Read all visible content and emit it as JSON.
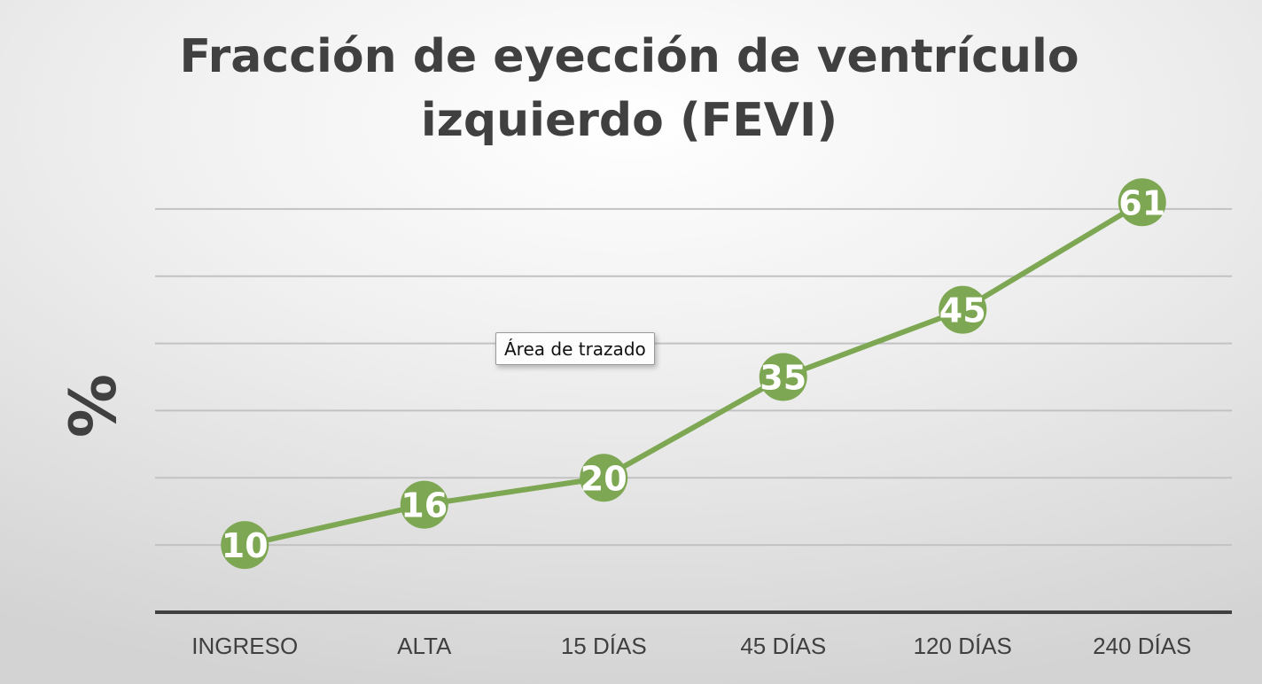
{
  "chart_data": {
    "type": "line",
    "title": "Fracción de eyección de ventrículo izquierdo (FEVI)",
    "ylabel": "%",
    "xlabel": "",
    "categories": [
      "INGRESO",
      "ALTA",
      "15 DÍAS",
      "45 DÍAS",
      "120 DÍAS",
      "240 DÍAS"
    ],
    "series": [
      {
        "values": [
          10,
          16,
          20,
          35,
          45,
          61
        ]
      }
    ],
    "ylim": [
      0,
      70
    ],
    "y_gridline_step": 10,
    "grid": true,
    "data_labels": true,
    "y_tick_labels_visible": false,
    "legend": "none",
    "colors": {
      "series": "#7da752",
      "gridline": "#c2c2c2",
      "axis": "#404040",
      "text": "#404040"
    }
  },
  "tooltip": {
    "text": "Área de trazado"
  }
}
